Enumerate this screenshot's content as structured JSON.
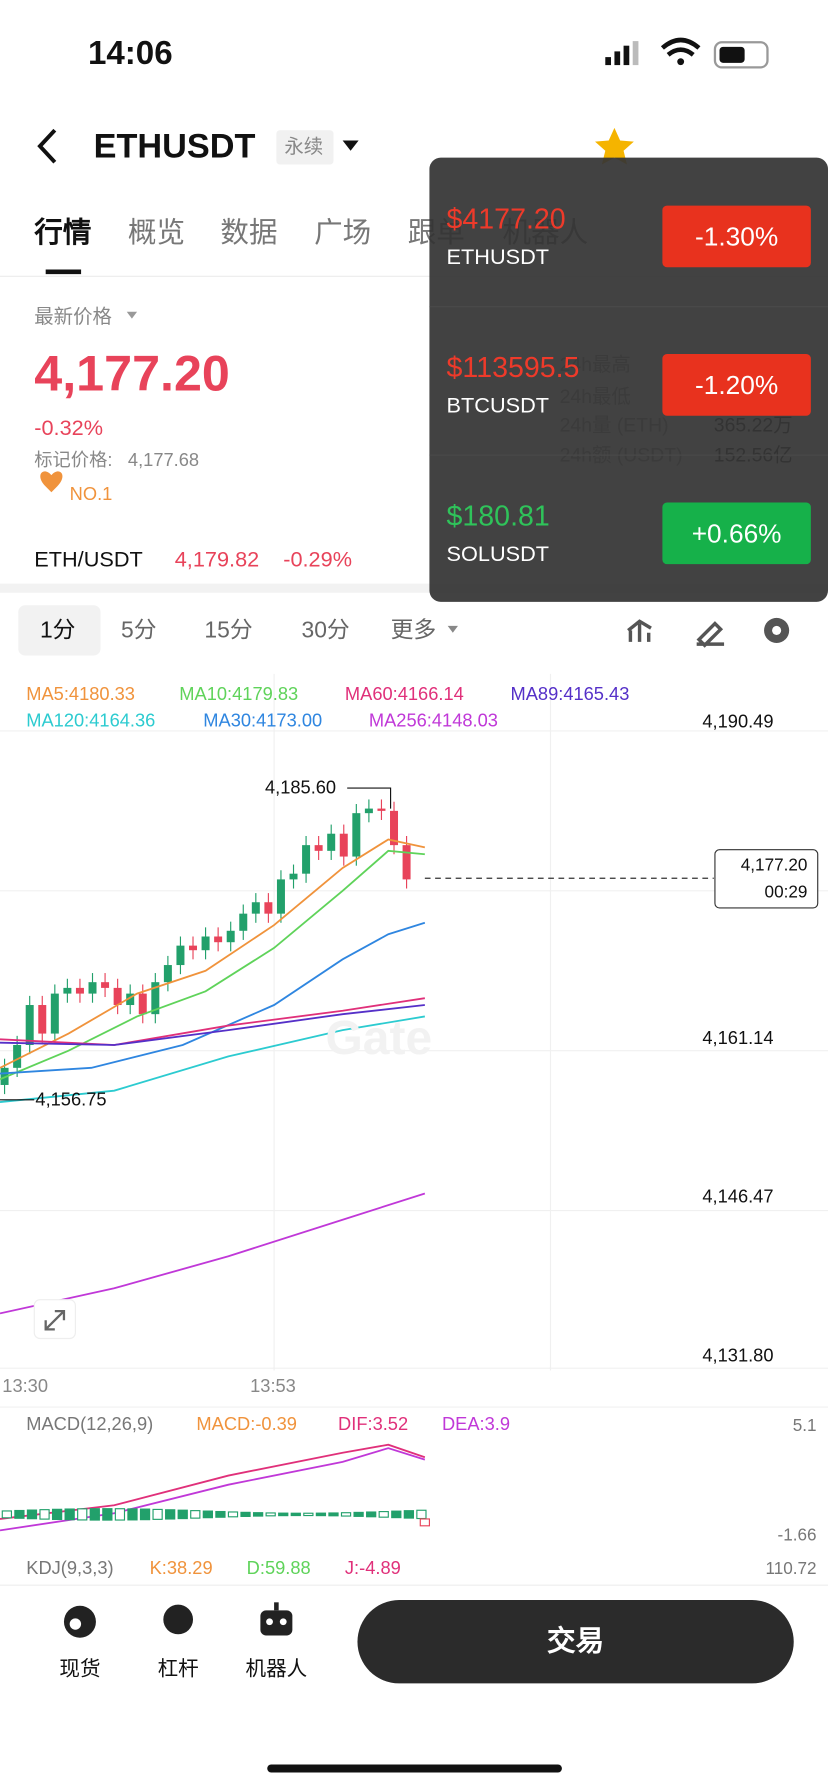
{
  "status": {
    "time": "14:06"
  },
  "header": {
    "symbol": "ETHUSDT",
    "tag": "永续"
  },
  "tabs": [
    "行情",
    "概览",
    "数据",
    "广场",
    "跟单",
    "机器人"
  ],
  "price": {
    "label": "最新价格",
    "value": "4,177.20",
    "change": "-0.32%",
    "mark_label": "标记价格:",
    "mark_value": "4,177.68",
    "rank": "NO.1"
  },
  "stats": [
    {
      "label": "24h最高"
    },
    {
      "label": "24h最低"
    },
    {
      "label": "24h量 (ETH)",
      "value": "365.22万"
    },
    {
      "label": "24h额 (USDT)",
      "value": "152.56亿"
    }
  ],
  "pair": {
    "name": "ETH/USDT",
    "price": "4,179.82",
    "change": "-0.29%"
  },
  "popup": [
    {
      "price": "$4177.20",
      "symbol": "ETHUSDT",
      "change": "-1.30%"
    },
    {
      "price": "$113595.5",
      "symbol": "BTCUSDT",
      "change": "-1.20%"
    },
    {
      "price": "$180.81",
      "symbol": "SOLUSDT",
      "change": "+0.66%"
    }
  ],
  "intervals": [
    "1分",
    "5分",
    "15分",
    "30分",
    "更多"
  ],
  "ma_legend": [
    [
      "MA5:4180.33",
      "MA10:4179.83",
      "MA60:4166.14",
      "MA89:4165.43"
    ],
    [
      "MA120:4164.36",
      "MA30:4173.00",
      "MA256:4148.03"
    ]
  ],
  "chart": {
    "axis": [
      "4,190.49",
      "4,161.14",
      "4,146.47",
      "4,131.80"
    ],
    "times": [
      "13:30",
      "13:53"
    ],
    "high": "4,185.60",
    "low": "4,156.75",
    "current": "4,177.20",
    "countdown": "00:29",
    "watermark": "Gate"
  },
  "macd": {
    "labels": [
      "MACD(12,26,9)",
      "MACD:-0.39",
      "DIF:3.52",
      "DEA:3.9"
    ],
    "axis": [
      "5.1",
      "-1.66"
    ]
  },
  "kdj": {
    "labels": [
      "KDJ(9,3,3)",
      "K:38.29",
      "D:59.88",
      "J:-4.89"
    ],
    "axis": "110.72"
  },
  "nav": [
    "现货",
    "杠杆",
    "机器人"
  ],
  "trade_button": "交易"
}
